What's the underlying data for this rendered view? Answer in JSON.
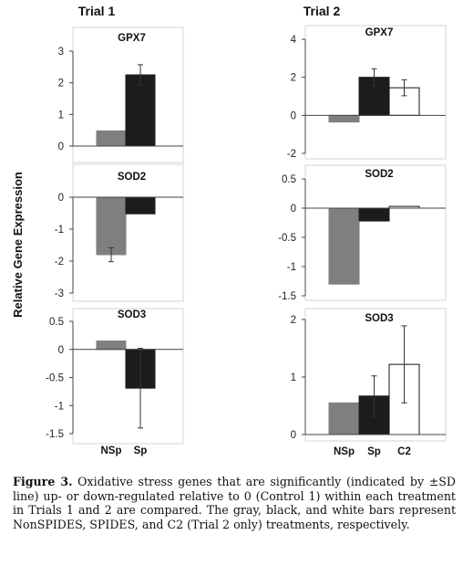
{
  "figure": {
    "y_axis_label": "Relative Gene Expression",
    "trial_titles": [
      "Trial 1",
      "Trial 2"
    ],
    "colors": {
      "NSp": "#7f7f7f",
      "Sp": "#1c1c1c",
      "C2": "#ffffff"
    },
    "caption_label": "Figure 3.",
    "caption_text": " Oxidative stress genes that are significantly (indicated by ±SD line) up- or down-regulated relative to 0 (Control 1) within each treatment in Trials 1 and 2 are compared. The gray, black, and white bars represent NonSPIDES, SPIDES, and C2 (Trial 2 only) treatments, respectively."
  },
  "chart_data": [
    {
      "type": "bar",
      "trial": "Trial 1",
      "title": "GPX7",
      "categories": [
        "NSp",
        "Sp"
      ],
      "values": [
        0.48,
        2.25
      ],
      "errors": [
        null,
        0.32
      ],
      "ylim": [
        0,
        3
      ],
      "yticks": [
        0,
        1,
        2,
        3
      ],
      "show_xlabels": false
    },
    {
      "type": "bar",
      "trial": "Trial 1",
      "title": "SOD2",
      "categories": [
        "NSp",
        "Sp"
      ],
      "values": [
        -1.8,
        -0.52
      ],
      "errors": [
        0.22,
        null
      ],
      "ylim": [
        -3,
        0
      ],
      "yticks": [
        0,
        -1,
        -2,
        -3
      ],
      "show_xlabels": false
    },
    {
      "type": "bar",
      "trial": "Trial 1",
      "title": "SOD3",
      "categories": [
        "NSp",
        "Sp"
      ],
      "values": [
        0.15,
        -0.69
      ],
      "errors": [
        null,
        0.71
      ],
      "ylim": [
        -1.5,
        0.5
      ],
      "yticks": [
        0.5,
        0,
        -0.5,
        -1,
        -1.5
      ],
      "show_xlabels": true
    },
    {
      "type": "bar",
      "trial": "Trial 2",
      "title": "GPX7",
      "categories": [
        "NSp",
        "Sp",
        "C2"
      ],
      "values": [
        -0.35,
        2.0,
        1.45
      ],
      "errors": [
        null,
        0.45,
        0.42
      ],
      "ylim": [
        -2,
        4
      ],
      "yticks": [
        4,
        2,
        0,
        -2
      ],
      "show_xlabels": false
    },
    {
      "type": "bar",
      "trial": "Trial 2",
      "title": "SOD2",
      "categories": [
        "NSp",
        "Sp",
        "C2"
      ],
      "values": [
        -1.3,
        -0.22,
        0.03
      ],
      "errors": [
        null,
        null,
        null
      ],
      "ylim": [
        -1.5,
        0.5
      ],
      "yticks": [
        0.5,
        0,
        -0.5,
        -1,
        -1.5
      ],
      "show_xlabels": false
    },
    {
      "type": "bar",
      "trial": "Trial 2",
      "title": "SOD3",
      "categories": [
        "NSp",
        "Sp",
        "C2"
      ],
      "values": [
        0.55,
        0.67,
        1.22
      ],
      "errors": [
        null,
        0.35,
        0.67
      ],
      "ylim": [
        0,
        2
      ],
      "yticks": [
        2,
        1,
        0
      ],
      "show_xlabels": true
    }
  ]
}
